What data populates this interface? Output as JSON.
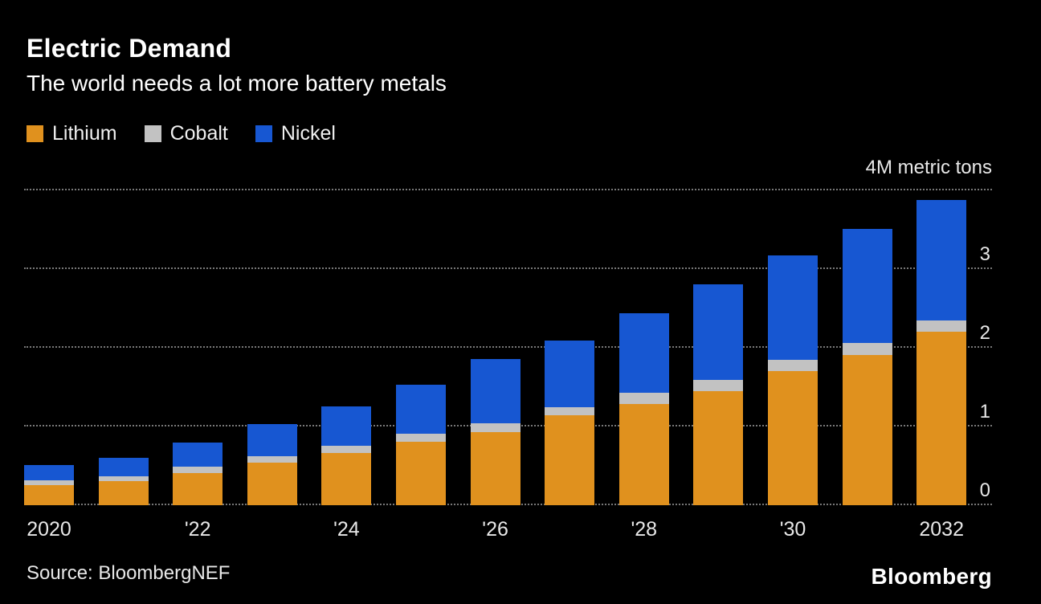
{
  "header": {
    "title": "Electric Demand",
    "subtitle": "The world needs a lot more battery metals"
  },
  "chart_data": {
    "type": "bar",
    "stacked": true,
    "title": "Electric Demand",
    "subtitle": "The world needs a lot more battery metals",
    "unit_label": "4M metric tons",
    "legend_position": "top-left",
    "grid": "dotted-horizontal",
    "categories": [
      "2020",
      "2021",
      "2022",
      "2023",
      "2024",
      "2025",
      "2026",
      "2027",
      "2028",
      "2029",
      "2030",
      "2031",
      "2032"
    ],
    "x_tick_labels": [
      "2020",
      "",
      "'22",
      "",
      "'24",
      "",
      "'26",
      "",
      "'28",
      "",
      "'30",
      "",
      "2032"
    ],
    "series": [
      {
        "name": "Lithium",
        "color": "#E0911E",
        "values": [
          0.26,
          0.31,
          0.41,
          0.54,
          0.66,
          0.81,
          0.93,
          1.14,
          1.29,
          1.45,
          1.7,
          1.91,
          2.2
        ]
      },
      {
        "name": "Cobalt",
        "color": "#C2C2C2",
        "values": [
          0.06,
          0.06,
          0.08,
          0.08,
          0.1,
          0.1,
          0.11,
          0.11,
          0.14,
          0.14,
          0.15,
          0.15,
          0.15
        ]
      },
      {
        "name": "Nickel",
        "color": "#1757D2",
        "values": [
          0.19,
          0.23,
          0.31,
          0.41,
          0.5,
          0.62,
          0.82,
          0.84,
          1.01,
          1.22,
          1.32,
          1.45,
          1.53
        ]
      }
    ],
    "y_axis": {
      "min": 0,
      "max": 4,
      "ticks": [
        0,
        1,
        2,
        3
      ],
      "unit": "M metric tons"
    }
  },
  "footer": {
    "source": "Source: BloombergNEF",
    "logo": "Bloomberg"
  }
}
